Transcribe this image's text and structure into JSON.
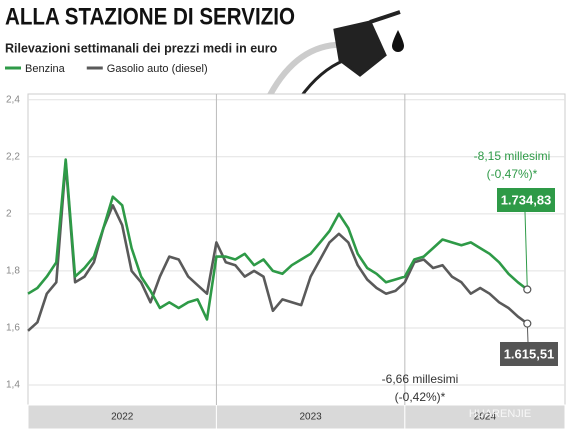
{
  "chart_data": {
    "type": "line",
    "title": "ALLA STAZIONE DI SERVIZIO",
    "subtitle": "Rilevazioni settimanali dei prezzi medi in euro",
    "xlim": [
      2022,
      2024.85
    ],
    "ylim": [
      1.33,
      2.42
    ],
    "yticks": [
      {
        "value": 2.4,
        "label": "2,4"
      },
      {
        "value": 2.2,
        "label": "2,2"
      },
      2,
      {
        "value": 1.8,
        "label": "1,8"
      },
      {
        "value": 1.6,
        "label": "1,6"
      },
      {
        "value": 1.4,
        "label": "1,4"
      }
    ],
    "grid": true,
    "legend": "top-left",
    "x_periods": [
      {
        "label": "2022",
        "start": 2022,
        "end": 2023
      },
      {
        "label": "2023",
        "start": 2023,
        "end": 2024
      },
      {
        "label": "2024",
        "start": 2024,
        "end": 2024.85
      }
    ],
    "x": [
      2022.0,
      2022.05,
      2022.1,
      2022.15,
      2022.2,
      2022.25,
      2022.3,
      2022.35,
      2022.4,
      2022.45,
      2022.5,
      2022.55,
      2022.6,
      2022.65,
      2022.7,
      2022.75,
      2022.8,
      2022.85,
      2022.9,
      2022.95,
      2023.0,
      2023.05,
      2023.1,
      2023.15,
      2023.2,
      2023.25,
      2023.3,
      2023.35,
      2023.4,
      2023.45,
      2023.5,
      2023.55,
      2023.6,
      2023.65,
      2023.7,
      2023.75,
      2023.8,
      2023.85,
      2023.9,
      2023.95,
      2024.0,
      2024.05,
      2024.1,
      2024.15,
      2024.2,
      2024.25,
      2024.3,
      2024.35,
      2024.4,
      2024.45,
      2024.5,
      2024.55,
      2024.6,
      2024.65
    ],
    "series": [
      {
        "name": "Benzina",
        "color": "#2e9a47",
        "values": [
          1.72,
          1.74,
          1.78,
          1.83,
          2.19,
          1.78,
          1.81,
          1.85,
          1.95,
          2.06,
          2.03,
          1.88,
          1.78,
          1.73,
          1.67,
          1.69,
          1.67,
          1.69,
          1.7,
          1.63,
          1.85,
          1.85,
          1.84,
          1.86,
          1.82,
          1.84,
          1.8,
          1.79,
          1.82,
          1.84,
          1.86,
          1.9,
          1.94,
          2.0,
          1.95,
          1.86,
          1.81,
          1.79,
          1.76,
          1.77,
          1.78,
          1.84,
          1.85,
          1.88,
          1.91,
          1.9,
          1.89,
          1.9,
          1.88,
          1.86,
          1.83,
          1.79,
          1.76,
          1.73483
        ],
        "end_label": "1.734,83",
        "change_label": [
          "-8,15 millesimi",
          "(-0,47%)*"
        ]
      },
      {
        "name": "Gasolio auto (diesel)",
        "color": "#5a5a5a",
        "values": [
          1.59,
          1.62,
          1.72,
          1.76,
          2.18,
          1.76,
          1.78,
          1.83,
          1.95,
          2.03,
          1.96,
          1.8,
          1.76,
          1.69,
          1.78,
          1.85,
          1.84,
          1.78,
          1.75,
          1.72,
          1.9,
          1.83,
          1.82,
          1.78,
          1.8,
          1.78,
          1.66,
          1.7,
          1.69,
          1.68,
          1.78,
          1.84,
          1.9,
          1.93,
          1.9,
          1.82,
          1.77,
          1.74,
          1.72,
          1.73,
          1.76,
          1.83,
          1.84,
          1.81,
          1.82,
          1.78,
          1.76,
          1.72,
          1.74,
          1.72,
          1.69,
          1.67,
          1.64,
          1.61551
        ],
        "end_label": "1.615,51",
        "change_label": [
          "-6,66 millesimi",
          "(-0,42%)*"
        ]
      }
    ],
    "watermark": "HUARENJIE"
  }
}
